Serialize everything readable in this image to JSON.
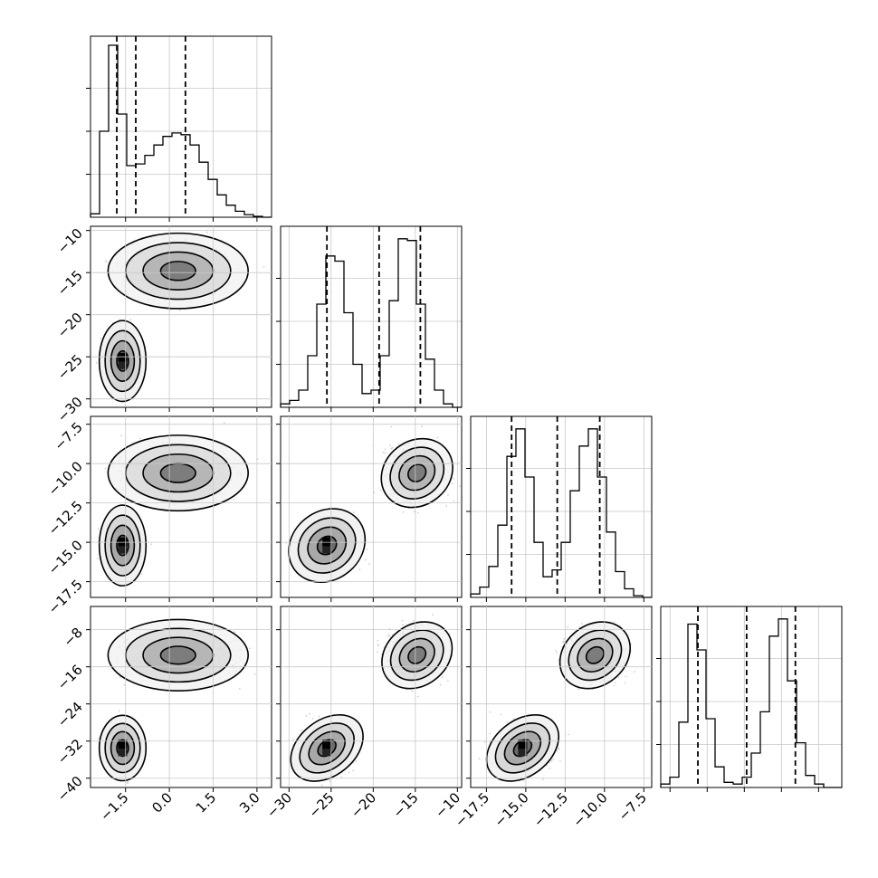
{
  "chart_data": {
    "type": "corner",
    "description_free": true,
    "parameters": [
      {
        "id": "p0",
        "range": [
          -2.7,
          3.5
        ],
        "ticks": [
          -1.5,
          0.0,
          1.5,
          3.0
        ],
        "tick_labels": [
          "−1.5",
          "0.0",
          "1.5",
          "3.0"
        ],
        "quantiles": [
          -1.8,
          -1.15,
          0.55
        ]
      },
      {
        "id": "p1",
        "range": [
          -31.0,
          -9.5
        ],
        "ticks": [
          -30,
          -25,
          -20,
          -15,
          -10
        ],
        "tick_labels": [
          "−30",
          "−25",
          "−20",
          "−15",
          "−10"
        ],
        "quantiles": [
          -25.5,
          -19.3,
          -14.4
        ]
      },
      {
        "id": "p2",
        "range": [
          -18.5,
          -7.0
        ],
        "ticks": [
          -17.5,
          -15.0,
          -12.5,
          -10.0,
          -7.5
        ],
        "tick_labels": [
          "−17.5",
          "−15.0",
          "−12.5",
          "−10.0",
          "−7.5"
        ],
        "quantiles": [
          -15.9,
          -13.0,
          -10.3
        ]
      },
      {
        "id": "p3",
        "range": [
          -42.0,
          -3.0
        ],
        "ticks": [
          -40,
          -32,
          -24,
          -16,
          -8
        ],
        "tick_labels": [
          "−40",
          "−32",
          "−24",
          "−16",
          "−8"
        ],
        "quantiles": [
          -34.0,
          -23.5,
          -13.0
        ]
      }
    ],
    "modes": [
      {
        "weight": 0.35,
        "mean": [
          -1.6,
          -25.5,
          -15.2,
          -33.5
        ],
        "sd": [
          0.25,
          1.5,
          0.8,
          2.2
        ]
      },
      {
        "weight": 0.65,
        "mean": [
          0.3,
          -14.8,
          -10.6,
          -13.5
        ],
        "sd": [
          0.75,
          1.4,
          0.75,
          2.4
        ]
      }
    ],
    "histograms": [
      {
        "param": "p0",
        "bins": 20,
        "heights": [
          0.02,
          0.5,
          1.0,
          0.6,
          0.3,
          0.31,
          0.36,
          0.42,
          0.47,
          0.49,
          0.48,
          0.42,
          0.32,
          0.22,
          0.13,
          0.07,
          0.035,
          0.015,
          0.005,
          0.0
        ]
      },
      {
        "param": "p1",
        "bins": 20,
        "heights": [
          0.02,
          0.04,
          0.1,
          0.3,
          0.6,
          0.88,
          0.85,
          0.55,
          0.25,
          0.08,
          0.1,
          0.3,
          0.62,
          0.98,
          0.97,
          0.6,
          0.28,
          0.1,
          0.02,
          0.0
        ]
      },
      {
        "param": "p2",
        "bins": 20,
        "heights": [
          0.02,
          0.06,
          0.18,
          0.42,
          0.82,
          0.98,
          0.7,
          0.32,
          0.12,
          0.16,
          0.32,
          0.62,
          0.88,
          0.98,
          0.7,
          0.38,
          0.15,
          0.05,
          0.01,
          0.0
        ]
      },
      {
        "param": "p3",
        "bins": 20,
        "heights": [
          0.02,
          0.06,
          0.38,
          0.95,
          0.8,
          0.4,
          0.12,
          0.03,
          0.02,
          0.06,
          0.2,
          0.44,
          0.88,
          0.98,
          0.62,
          0.26,
          0.07,
          0.02,
          0.0,
          0.0
        ]
      }
    ],
    "contour_levels_sigma": [
      0.5,
      1.0,
      1.5,
      2.0
    ],
    "grid": true,
    "legend": "none"
  }
}
